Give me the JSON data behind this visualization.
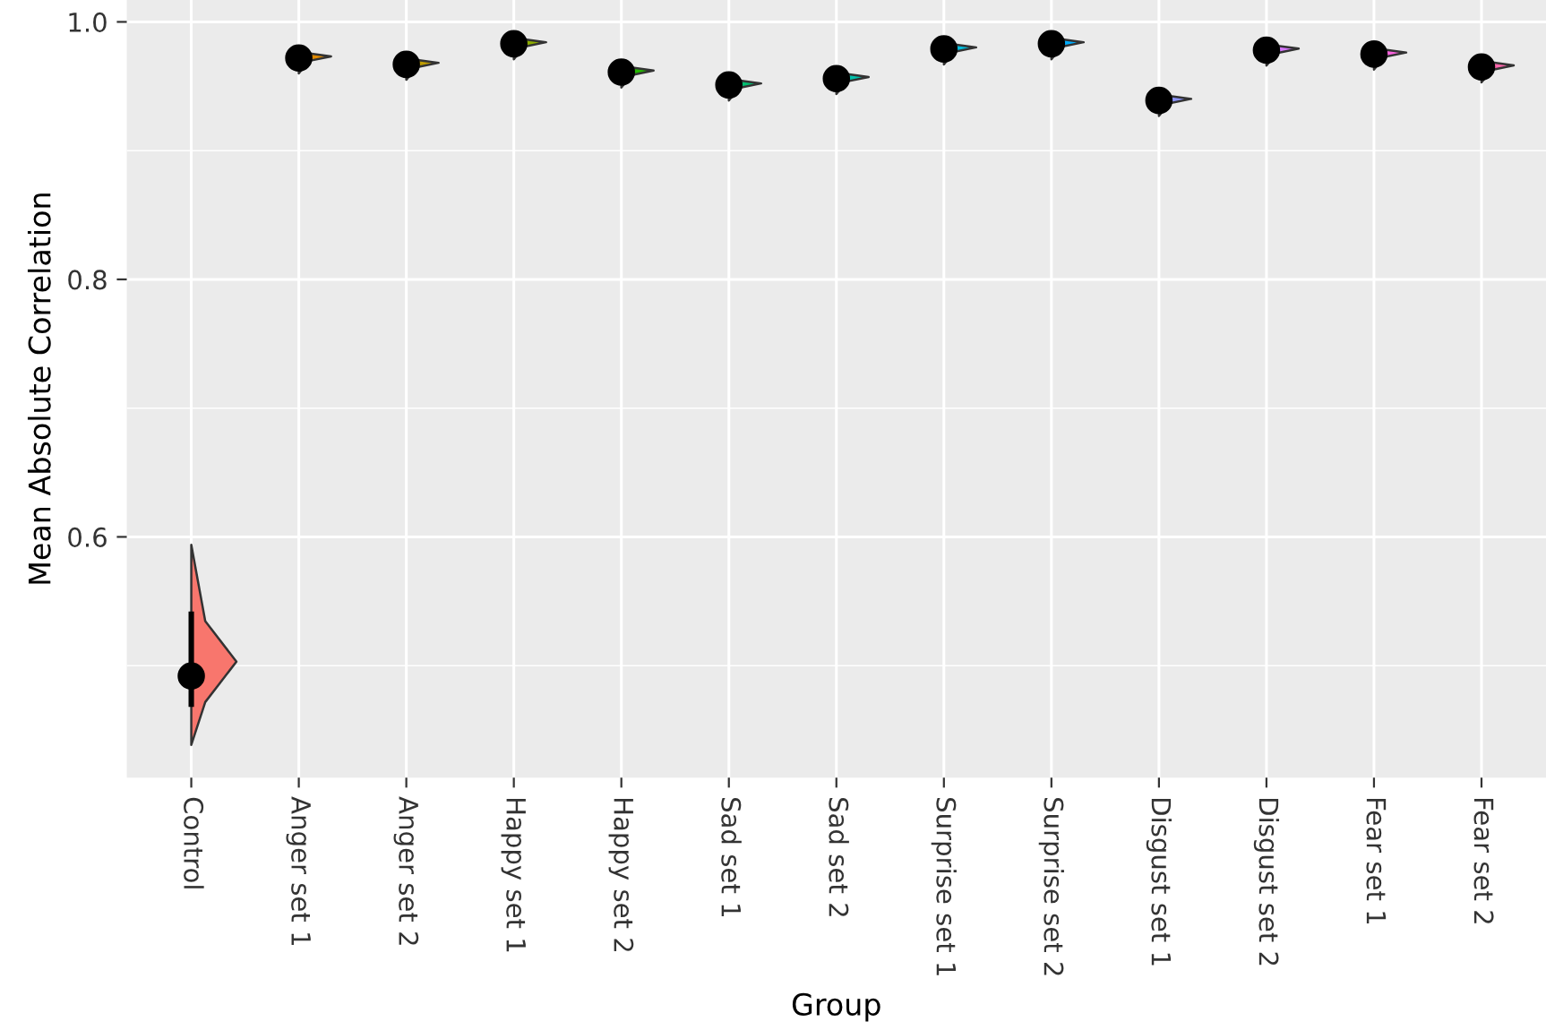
{
  "chart_data": {
    "type": "scatter",
    "xlabel": "Group",
    "ylabel": "Mean Absolute Correlation",
    "categories": [
      "Control",
      "Anger set 1",
      "Anger set 2",
      "Happy set 1",
      "Happy set 2",
      "Sad set 1",
      "Sad set 2",
      "Surprise set 1",
      "Surprise set 2",
      "Disgust set 1",
      "Disgust set 2",
      "Fear set 1",
      "Fear set 2"
    ],
    "ylim": [
      0.413,
      1.017
    ],
    "yticks": [
      0.6,
      0.8,
      {
        "value": 1.0,
        "label": "1.0"
      }
    ],
    "grid": true,
    "series": [
      {
        "color": "#000000",
        "marker": "circle",
        "values": [
          0.492,
          0.972,
          0.967,
          0.983,
          0.961,
          0.951,
          0.956,
          0.979,
          0.983,
          0.939,
          0.978,
          0.975,
          0.965
        ],
        "errors": [
          [
            0.468,
            0.542
          ],
          null,
          null,
          null,
          null,
          null,
          null,
          null,
          null,
          null,
          null,
          null,
          null
        ]
      }
    ]
  }
}
